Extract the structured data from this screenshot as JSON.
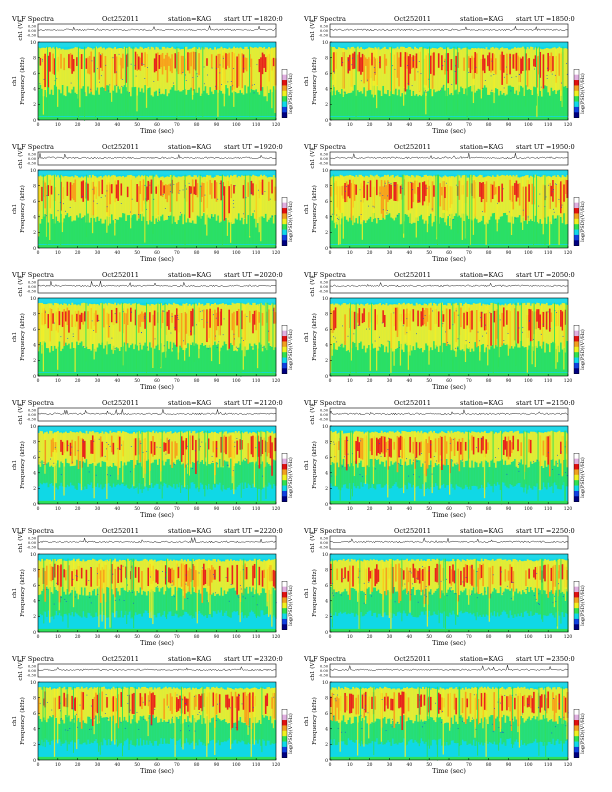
{
  "page": {
    "header_label": "VLF Spectra",
    "date": "Oct252011",
    "station": "station=KAG",
    "start_prefix": "start  UT  ="
  },
  "axes": {
    "ch1_label": "ch1 (V)",
    "freq_label": "Frequency  (kHz)",
    "side_label": "ch1",
    "x_label": "Time  (sec)",
    "x_ticks": [
      "0",
      "10",
      "20",
      "30",
      "40",
      "50",
      "60",
      "70",
      "80",
      "90",
      "100",
      "110",
      "120"
    ],
    "y_ticks": [
      "0",
      "2",
      "4",
      "6",
      "8",
      "10"
    ],
    "volt_ticks": [
      "0.30",
      "0.00",
      "-0.30"
    ],
    "colorbar_label": "log(PSD)(V²/Hz)"
  },
  "palette": {
    "background": "#10d8e6",
    "green": "#2ee05a",
    "yellow": "#f4ee26",
    "orange": "#f7a21c",
    "red": "#e8241c",
    "blue": "#1448e0",
    "colorbar": [
      "#ffffff",
      "#e0b0e0",
      "#e01010",
      "#f0a020",
      "#f0f020",
      "#30e050",
      "#10d8e8",
      "#1040e0",
      "#000080"
    ]
  },
  "chart_data": [
    {
      "type": "heatmap",
      "start_time": "1820:0",
      "xlim": [
        0,
        120
      ],
      "ylim": [
        0,
        10
      ],
      "intensity": "high"
    },
    {
      "type": "heatmap",
      "start_time": "1850:0",
      "xlim": [
        0,
        120
      ],
      "ylim": [
        0,
        10
      ],
      "intensity": "high"
    },
    {
      "type": "heatmap",
      "start_time": "1920:0",
      "xlim": [
        0,
        120
      ],
      "ylim": [
        0,
        10
      ],
      "intensity": "high"
    },
    {
      "type": "heatmap",
      "start_time": "1950:0",
      "xlim": [
        0,
        120
      ],
      "ylim": [
        0,
        10
      ],
      "intensity": "high"
    },
    {
      "type": "heatmap",
      "start_time": "2020:0",
      "xlim": [
        0,
        120
      ],
      "ylim": [
        0,
        10
      ],
      "intensity": "high"
    },
    {
      "type": "heatmap",
      "start_time": "2050:0",
      "xlim": [
        0,
        120
      ],
      "ylim": [
        0,
        10
      ],
      "intensity": "high"
    },
    {
      "type": "heatmap",
      "start_time": "2120:0",
      "xlim": [
        0,
        120
      ],
      "ylim": [
        0,
        10
      ],
      "intensity": "medium"
    },
    {
      "type": "heatmap",
      "start_time": "2150:0",
      "xlim": [
        0,
        120
      ],
      "ylim": [
        0,
        10
      ],
      "intensity": "medium"
    },
    {
      "type": "heatmap",
      "start_time": "2220:0",
      "xlim": [
        0,
        120
      ],
      "ylim": [
        0,
        10
      ],
      "intensity": "medium"
    },
    {
      "type": "heatmap",
      "start_time": "2250:0",
      "xlim": [
        0,
        120
      ],
      "ylim": [
        0,
        10
      ],
      "intensity": "medium"
    },
    {
      "type": "heatmap",
      "start_time": "2320:0",
      "xlim": [
        0,
        120
      ],
      "ylim": [
        0,
        10
      ],
      "intensity": "medium"
    },
    {
      "type": "heatmap",
      "start_time": "2350:0",
      "xlim": [
        0,
        120
      ],
      "ylim": [
        0,
        10
      ],
      "intensity": "medium"
    }
  ]
}
